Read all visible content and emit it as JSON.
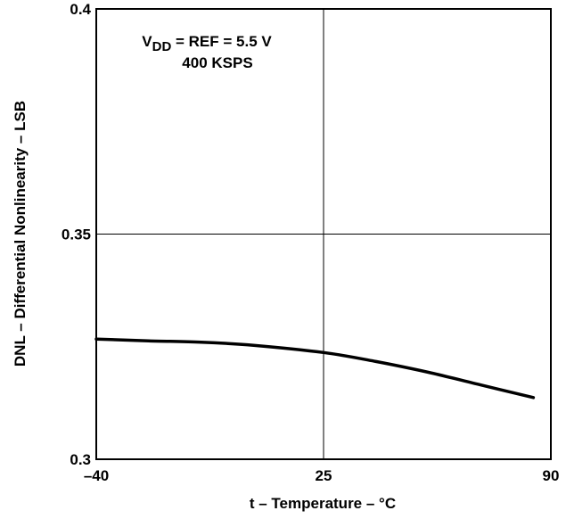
{
  "chart_data": {
    "type": "line",
    "title": "",
    "xlabel": "t – Temperature – °C",
    "ylabel": "DNL – Differential Nonlinearity – LSB",
    "xlim": [
      -40,
      90
    ],
    "ylim": [
      0.3,
      0.4
    ],
    "x_ticks": [
      -40,
      25,
      90
    ],
    "y_ticks": [
      0.3,
      0.35,
      0.4
    ],
    "x_tick_labels": [
      "–40",
      "25",
      "90"
    ],
    "y_tick_labels": [
      "0.3",
      "0.35",
      "0.4"
    ],
    "grid": true,
    "annotation": {
      "line1_prefix": "V",
      "line1_sub": "DD",
      "line1_rest": " = REF = 5.5 V",
      "line2": "400 KSPS"
    },
    "series": [
      {
        "x": [
          -40,
          -25,
          -10,
          5,
          25,
          40,
          55,
          70,
          85
        ],
        "y": [
          0.3267,
          0.3263,
          0.326,
          0.3253,
          0.3237,
          0.3217,
          0.3193,
          0.3165,
          0.3137
        ]
      }
    ]
  }
}
